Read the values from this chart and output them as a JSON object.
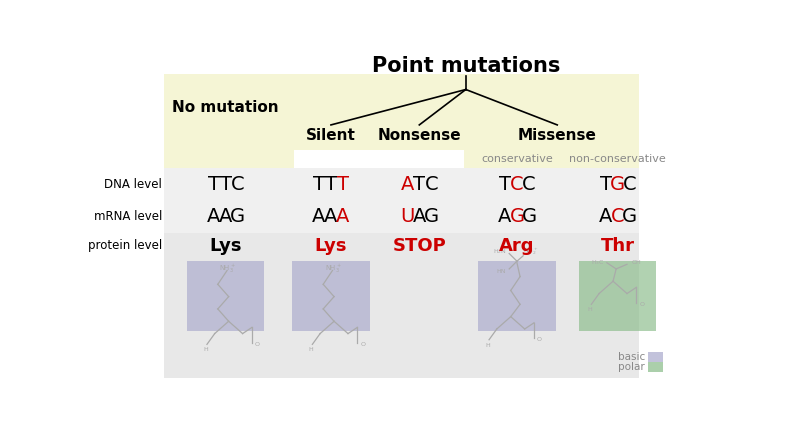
{
  "title": "Point mutations",
  "bg_color": "#ffffff",
  "header_yellow": "#f5f5d5",
  "table_gray": "#e8e8e8",
  "table_light": "#f0f0f0",
  "basic_color": "#a8a8cc",
  "polar_color": "#88bb88",
  "dna_row": [
    "TTC",
    "TTT",
    "ATC",
    "TCC",
    "TGC"
  ],
  "dna_changed": [
    [],
    [
      2
    ],
    [
      0
    ],
    [
      1
    ],
    [
      1
    ]
  ],
  "mrna_row": [
    "AAG",
    "AAA",
    "UAG",
    "AGG",
    "ACG"
  ],
  "mrna_changed": [
    [],
    [
      2
    ],
    [
      0
    ],
    [
      1
    ],
    [
      1
    ]
  ],
  "protein_row": [
    "Lys",
    "Lys",
    "STOP",
    "Arg",
    "Thr"
  ],
  "protein_colors": [
    "#000000",
    "#cc0000",
    "#cc0000",
    "#cc0000",
    "#cc0000"
  ],
  "red": "#cc0000",
  "black": "#000000",
  "gray_line": "#999999",
  "gray_text": "#888888",
  "struct_color": "#aaaaaa"
}
